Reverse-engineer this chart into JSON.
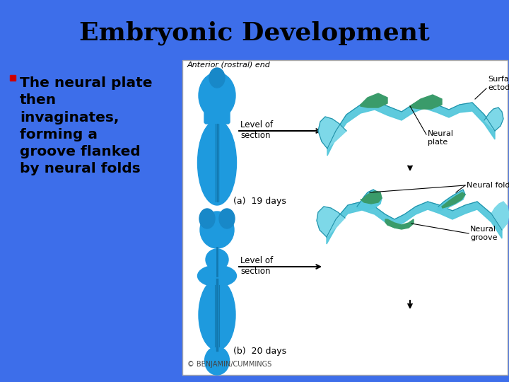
{
  "title": "Embryonic Development",
  "title_fontsize": 26,
  "title_fontweight": "bold",
  "title_color": "#000000",
  "background_color": "#3D6EEA",
  "bullet_color": "#CC0000",
  "bullet_text": "The neural plate\nthen\ninvaginates,\nforming a\ngroove flanked\nby neural folds",
  "bullet_text_fontsize": 14.5,
  "bullet_text_color": "#000000",
  "bullet_text_fontweight": "bold",
  "diagram_box_color": "#FFFFFF",
  "anterior_label": "Anterior (rostral) end",
  "level_section_label": "Level of\nsection",
  "days_a_label": "(a)  19 days",
  "days_b_label": "(b)  20 days",
  "surface_ectoderm_label": "Surface\nectoderm",
  "neural_plate_label": "Neural\nplate",
  "neural_folds_label": "Neural folds",
  "neural_groove_label": "Neural\ngroove",
  "copyright_label": "© BENJAMIN/CUMMINGS",
  "embryo_blue": "#1E9ADE",
  "embryo_blue_dark": "#1278B0",
  "ectoderm_light": "#7DD8E8",
  "ectoderm_mid": "#55C8DC",
  "neural_green": "#3A9B6A",
  "neural_green_dark": "#2A7A50"
}
